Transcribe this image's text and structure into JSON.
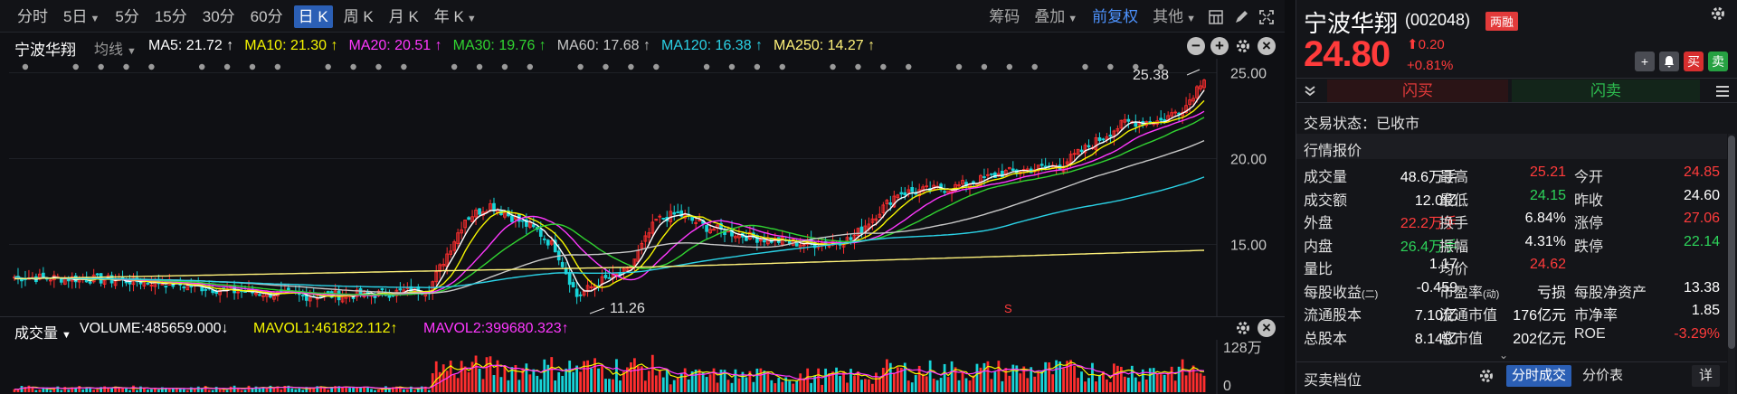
{
  "periods": [
    {
      "label": "分时",
      "caret": false,
      "active": false
    },
    {
      "label": "5日",
      "caret": true,
      "active": false
    },
    {
      "label": "5分",
      "caret": false,
      "active": false
    },
    {
      "label": "15分",
      "caret": false,
      "active": false
    },
    {
      "label": "30分",
      "caret": false,
      "active": false
    },
    {
      "label": "60分",
      "caret": false,
      "active": false
    },
    {
      "label": "日 K",
      "caret": false,
      "active": true
    },
    {
      "label": "周 K",
      "caret": false,
      "active": false
    },
    {
      "label": "月 K",
      "caret": false,
      "active": false
    },
    {
      "label": "年 K",
      "caret": true,
      "active": false
    }
  ],
  "toolbar": {
    "chip": "筹码",
    "overlay": "叠加",
    "adjust": "前复权",
    "other": "其他"
  },
  "chart_header": {
    "stock": "宁波华翔",
    "junxian": "均线"
  },
  "ma_legend": [
    {
      "text": "MA5: 21.72 ↑",
      "color": "#ffffff"
    },
    {
      "text": "MA10: 21.30 ↑",
      "color": "#f5f500"
    },
    {
      "text": "MA20: 20.51 ↑",
      "color": "#ff38ff"
    },
    {
      "text": "MA30: 19.76 ↑",
      "color": "#31d431"
    },
    {
      "text": "MA60: 17.68 ↑",
      "color": "#c8c8c8"
    },
    {
      "text": "MA120: 16.38 ↑",
      "color": "#2bd2e6"
    },
    {
      "text": "MA250: 14.27 ↑",
      "color": "#fff27a"
    }
  ],
  "chart_data": {
    "type": "candlestick",
    "y_ticks": [
      "25.00",
      "20.00",
      "15.00"
    ],
    "ylim": [
      10.5,
      25.5
    ],
    "high_label": "25.38",
    "low_label": "11.26",
    "s_marker": "S",
    "volume_axis": [
      "128万",
      "0"
    ],
    "volume_header": {
      "title": "成交量",
      "volume": "VOLUME:485659.000↓",
      "mavol1": "MAVOL1:461822.112↑",
      "mavol2": "MAVOL2:399680.323↑"
    },
    "series": [
      {
        "name": "MA5",
        "color": "#ffffff"
      },
      {
        "name": "MA10",
        "color": "#f5f500"
      },
      {
        "name": "MA20",
        "color": "#ff38ff"
      },
      {
        "name": "MA30",
        "color": "#31d431"
      },
      {
        "name": "MA60",
        "color": "#c8c8c8"
      },
      {
        "name": "MA120",
        "color": "#2bd2e6"
      },
      {
        "name": "MA250",
        "color": "#fff27a"
      }
    ],
    "close_anchors": [
      [
        0,
        13.1
      ],
      [
        20,
        13.0
      ],
      [
        40,
        12.8
      ],
      [
        60,
        12.3
      ],
      [
        80,
        12.0
      ],
      [
        100,
        12.1
      ],
      [
        115,
        12.4
      ],
      [
        125,
        16.5
      ],
      [
        132,
        17.3
      ],
      [
        138,
        16.6
      ],
      [
        145,
        15.8
      ],
      [
        150,
        14.8
      ],
      [
        156,
        12.0
      ],
      [
        163,
        12.9
      ],
      [
        170,
        13.4
      ],
      [
        178,
        16.4
      ],
      [
        184,
        16.8
      ],
      [
        192,
        16.0
      ],
      [
        205,
        15.4
      ],
      [
        220,
        15.0
      ],
      [
        232,
        15.3
      ],
      [
        245,
        18.0
      ],
      [
        260,
        18.3
      ],
      [
        275,
        19.2
      ],
      [
        290,
        19.6
      ],
      [
        300,
        21.0
      ],
      [
        308,
        22.1
      ],
      [
        318,
        22.2
      ],
      [
        325,
        23.1
      ],
      [
        330,
        24.8
      ]
    ],
    "colors": {
      "up": "#ff2e2e",
      "down": "#17d4d8",
      "panel_bg": "#0f1014"
    }
  },
  "quote": {
    "name": "宁波华翔",
    "code": "(002048)",
    "badge": "两融",
    "price": "24.80",
    "change": "0.20",
    "change_pct": "+0.81%",
    "flash_buy": "闪买",
    "flash_sell": "闪卖",
    "status_label": "交易状态：已收市",
    "section_title": "行情报价",
    "rows": [
      [
        {
          "l": "成交量",
          "v": "48.6万手",
          "c": "white"
        },
        {
          "l": "最高",
          "v": "25.21",
          "c": "red"
        },
        {
          "l": "今开",
          "v": "24.85",
          "c": "red"
        }
      ],
      [
        {
          "l": "成交额",
          "v": "12.0亿",
          "c": "white"
        },
        {
          "l": "最低",
          "v": "24.15",
          "c": "green"
        },
        {
          "l": "昨收",
          "v": "24.60",
          "c": "white"
        }
      ],
      [
        {
          "l": "外盘",
          "v": "22.2万手",
          "c": "red",
          "lc": "white"
        },
        {
          "l": "换手",
          "v": "6.84%",
          "c": "white"
        },
        {
          "l": "涨停",
          "v": "27.06",
          "c": "red"
        }
      ],
      [
        {
          "l": "内盘",
          "v": "26.4万手",
          "c": "green"
        },
        {
          "l": "振幅",
          "v": "4.31%",
          "c": "white"
        },
        {
          "l": "跌停",
          "v": "22.14",
          "c": "green"
        }
      ],
      [
        {
          "l": "量比",
          "v": "1.17",
          "c": "white"
        },
        {
          "l": "均价",
          "v": "24.62",
          "c": "red"
        },
        {
          "l": "",
          "v": "",
          "c": "white"
        }
      ],
      [
        {
          "l": "每股收益",
          "sub": "(二)",
          "v": "-0.459",
          "c": "white"
        },
        {
          "l": "市盈率",
          "sub": "(动)",
          "v": "亏损",
          "c": "white"
        },
        {
          "l": "每股净资产",
          "v": "13.38",
          "c": "white"
        }
      ],
      [
        {
          "l": "流通股本",
          "v": "7.10亿",
          "c": "white"
        },
        {
          "l": "流通市值",
          "v": "176亿元",
          "c": "white"
        },
        {
          "l": "市净率",
          "v": "1.85",
          "c": "white"
        }
      ],
      [
        {
          "l": "总股本",
          "v": "8.14亿",
          "c": "white"
        },
        {
          "l": "总市值",
          "v": "202亿元",
          "c": "white"
        },
        {
          "l": "ROE",
          "v": "-3.29%",
          "c": "red"
        }
      ]
    ],
    "bottom_label": "买卖档位",
    "tab1": "分时成交",
    "tab2": "分价表",
    "tab3": "详"
  }
}
